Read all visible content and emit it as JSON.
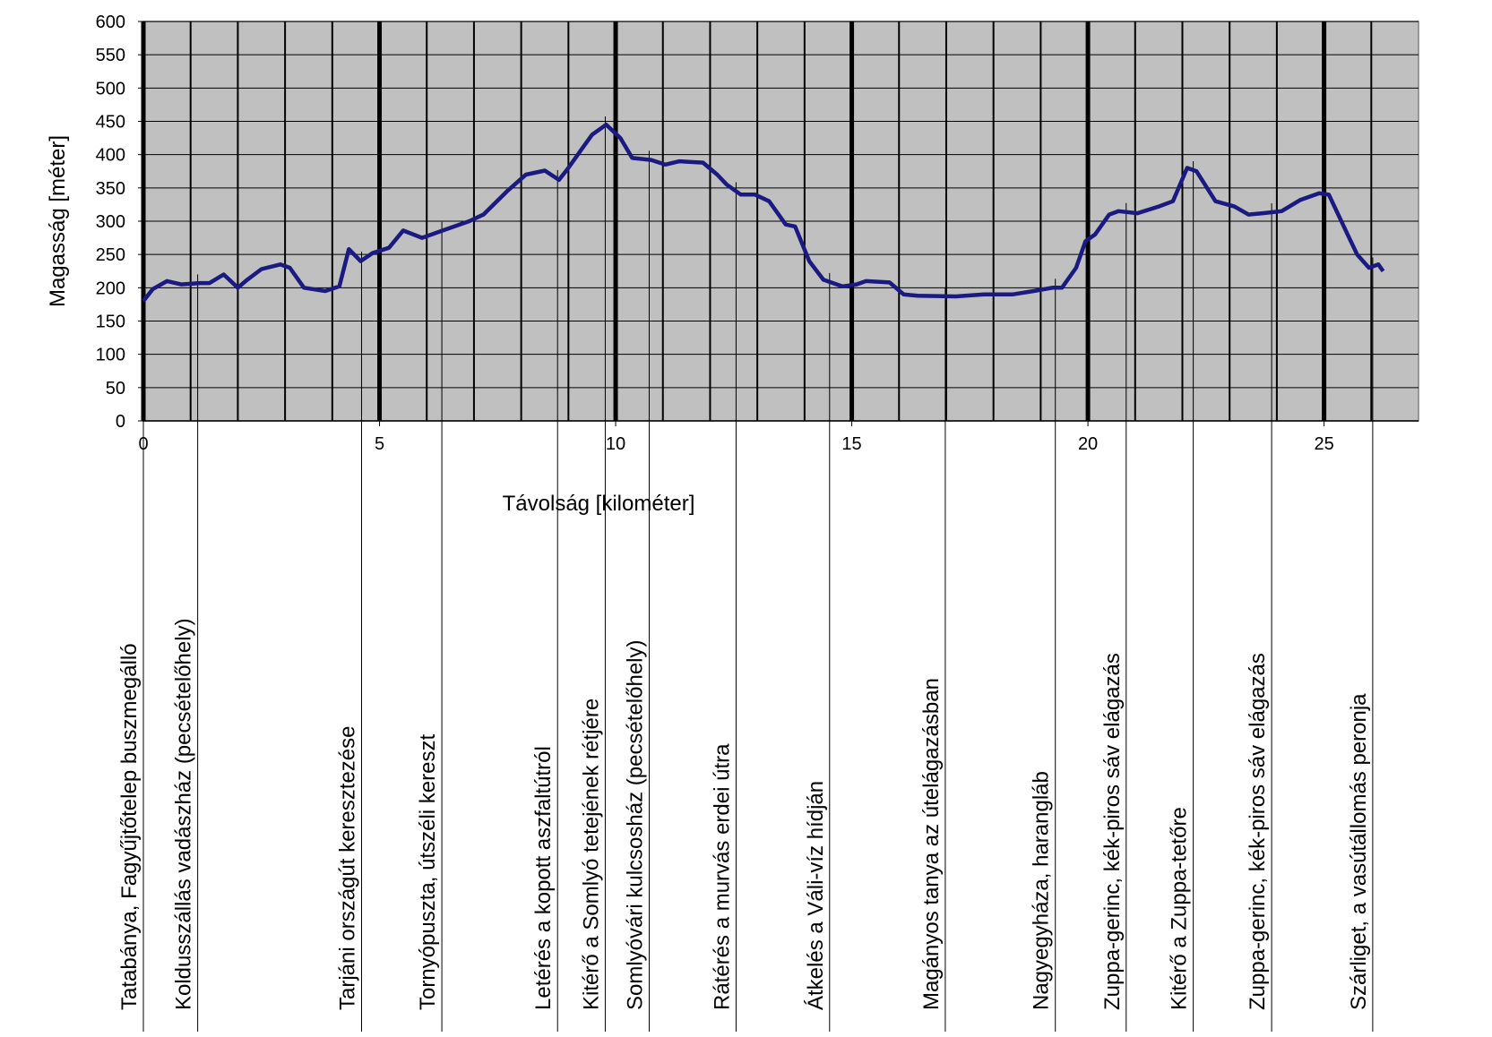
{
  "chart_data": {
    "type": "line",
    "xlabel": "Távolság [kilométer]",
    "ylabel": "Magasság [méter]",
    "xlim": [
      0,
      27
    ],
    "ylim": [
      0,
      600
    ],
    "xticks": [
      0,
      5,
      10,
      15,
      20,
      25
    ],
    "yticks": [
      0,
      50,
      100,
      150,
      200,
      250,
      300,
      350,
      400,
      450,
      500,
      550,
      600
    ],
    "x_gridlines": [
      1,
      2,
      3,
      4,
      6,
      7,
      8,
      9,
      11,
      12,
      13,
      14,
      16,
      17,
      18,
      19,
      21,
      22,
      23,
      24,
      26
    ],
    "grid": true,
    "background": "#c0c0c0",
    "color": "#1a1a80",
    "x": [
      0,
      0.2,
      0.5,
      0.8,
      1.2,
      1.4,
      1.7,
      2.0,
      2.2,
      2.5,
      2.9,
      3.1,
      3.4,
      3.85,
      4.15,
      4.35,
      4.6,
      4.85,
      5.2,
      5.5,
      5.9,
      6.3,
      6.9,
      7.2,
      7.7,
      8.1,
      8.5,
      8.8,
      9.0,
      9.3,
      9.5,
      9.8,
      10.1,
      10.35,
      10.75,
      11.05,
      11.35,
      11.85,
      12.15,
      12.35,
      12.65,
      12.95,
      13.25,
      13.6,
      13.8,
      14.1,
      14.4,
      14.8,
      15.1,
      15.3,
      15.8,
      16.1,
      16.4,
      17.2,
      17.8,
      18.4,
      18.85,
      19.25,
      19.45,
      19.75,
      19.95,
      20.15,
      20.45,
      20.65,
      21.05,
      21.5,
      21.8,
      22.1,
      22.3,
      22.7,
      23.1,
      23.4,
      23.7,
      24.1,
      24.5,
      24.9,
      25.1,
      25.5,
      25.7,
      25.95,
      26.15,
      26.25
    ],
    "values": [
      180,
      198,
      210,
      205,
      207,
      207,
      220,
      200,
      212,
      228,
      235,
      230,
      200,
      195,
      202,
      258,
      240,
      252,
      260,
      286,
      275,
      285,
      300,
      310,
      345,
      370,
      376,
      362,
      380,
      410,
      430,
      445,
      425,
      395,
      392,
      385,
      390,
      388,
      370,
      355,
      340,
      340,
      330,
      295,
      292,
      240,
      212,
      202,
      205,
      210,
      208,
      190,
      188,
      187,
      190,
      190,
      195,
      200,
      200,
      230,
      270,
      280,
      310,
      315,
      312,
      322,
      330,
      380,
      375,
      330,
      322,
      310,
      312,
      315,
      332,
      342,
      340,
      280,
      250,
      230,
      235,
      225
    ],
    "waypoints": [
      {
        "label": "Tatabánya, Fagyűjtőtelep buszmegálló",
        "x": 0
      },
      {
        "label": "Koldusszállás vadászház (pecsételőhely)",
        "x": 1.15
      },
      {
        "label": "Tarjáni országút keresztezése",
        "x": 4.62
      },
      {
        "label": "Tornyópuszta, útszéli kereszt",
        "x": 6.32
      },
      {
        "label": "Letérés a kopott aszfaltútról",
        "x": 8.77
      },
      {
        "label": "Kitérő a Somlyó tetejének rétjére",
        "x": 9.78
      },
      {
        "label": "Somlyóvári kulcsosház (pecsételőhely)",
        "x": 10.71
      },
      {
        "label": "Rátérés a murvás erdei útra",
        "x": 12.55
      },
      {
        "label": "Átkelés a Váli-víz hídján",
        "x": 14.53
      },
      {
        "label": "Magányos tanya az útelágazásban",
        "x": 16.98
      },
      {
        "label": "Nagyegyháza, harangláb",
        "x": 19.31
      },
      {
        "label": "Zuppa-gerinc, kék-piros sáv elágazás",
        "x": 20.81
      },
      {
        "label": "Kitérő a Zuppa-tetőre",
        "x": 22.23
      },
      {
        "label": "Zuppa-gerinc, kék-piros sáv elágazás",
        "x": 23.89
      },
      {
        "label": "Szárliget, a vasútállomás peronja",
        "x": 26.03
      }
    ]
  }
}
